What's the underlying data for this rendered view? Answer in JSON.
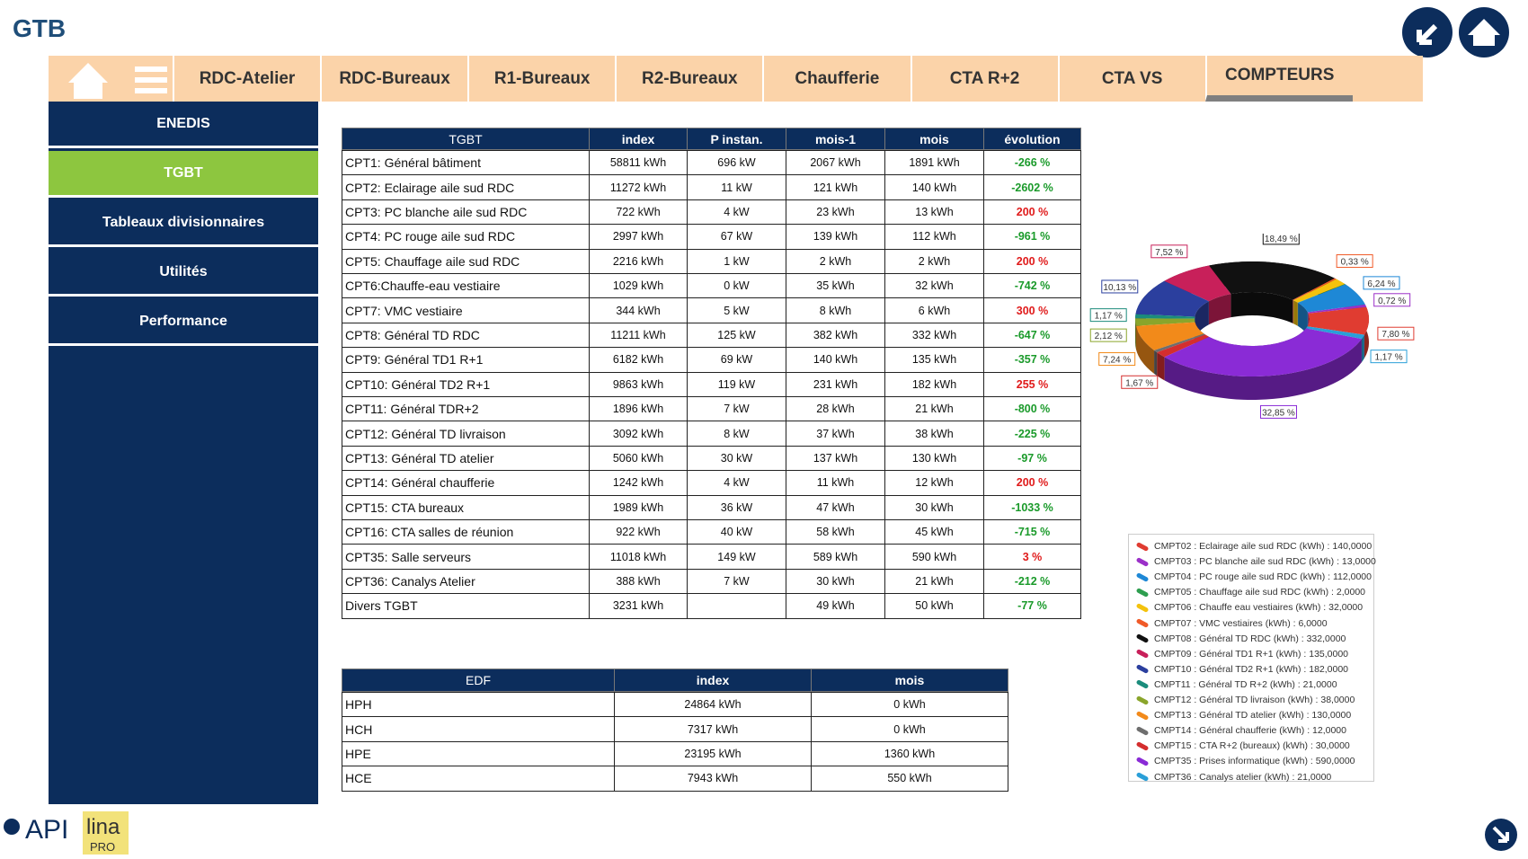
{
  "header": {
    "title": "GTB"
  },
  "nav": {
    "tabs": [
      "RDC-Atelier",
      "RDC-Bureaux",
      "R1-Bureaux",
      "R2-Bureaux",
      "Chaufferie",
      "CTA R+2",
      "CTA VS",
      "COMPTEURS"
    ],
    "active": 7
  },
  "sidebar": {
    "items": [
      "ENEDIS",
      "TGBT",
      "Tableaux divisionnaires",
      "Utilités",
      "Performance"
    ],
    "active": 1
  },
  "tgbt": {
    "columns": [
      "TGBT",
      "index",
      "P instan.",
      "mois-1",
      "mois",
      "évolution"
    ],
    "rows": [
      [
        "CPT1: Général bâtiment",
        "58811 kWh",
        "696 kW",
        "2067 kWh",
        "1891 kWh",
        "-266 %"
      ],
      [
        "CPT2: Eclairage aile sud RDC",
        "11272 kWh",
        "11 kW",
        "121 kWh",
        "140 kWh",
        "-2602 %"
      ],
      [
        "CPT3: PC blanche aile sud RDC",
        "722 kWh",
        "4 kW",
        "23 kWh",
        "13 kWh",
        "200 %"
      ],
      [
        "CPT4: PC rouge aile sud RDC",
        "2997 kWh",
        "67 kW",
        "139 kWh",
        "112 kWh",
        "-961 %"
      ],
      [
        "CPT5: Chauffage aile sud RDC",
        "2216 kWh",
        "1 kW",
        "2 kWh",
        "2 kWh",
        "200 %"
      ],
      [
        "CPT6:Chauffe-eau vestiaire",
        "1029 kWh",
        "0 kW",
        "35 kWh",
        "32 kWh",
        "-742 %"
      ],
      [
        "CPT7: VMC vestiaire",
        "344 kWh",
        "5 kW",
        "8 kWh",
        "6 kWh",
        "300 %"
      ],
      [
        "CPT8: Général TD RDC",
        "11211 kWh",
        "125 kW",
        "382 kWh",
        "332 kWh",
        "-647 %"
      ],
      [
        "CPT9: Général TD1 R+1",
        "6182 kWh",
        "69 kW",
        "140 kWh",
        "135 kWh",
        "-357 %"
      ],
      [
        "CPT10: Général TD2 R+1",
        "9863 kWh",
        "119 kW",
        "231 kWh",
        "182 kWh",
        "255 %"
      ],
      [
        "CPT11: Général TDR+2",
        "1896 kWh",
        "7 kW",
        "28 kWh",
        "21 kWh",
        "-800 %"
      ],
      [
        "CPT12: Général TD livraison",
        "3092 kWh",
        "8 kW",
        "37 kWh",
        "38 kWh",
        "-225 %"
      ],
      [
        "CPT13: Général TD atelier",
        "5060 kWh",
        "30 kW",
        "137 kWh",
        "130 kWh",
        "-97 %"
      ],
      [
        "CPT14: Général chaufferie",
        "1242 kWh",
        "4 kW",
        "11 kWh",
        "12 kWh",
        "200 %"
      ],
      [
        "CPT15: CTA bureaux",
        "1989 kWh",
        "36 kW",
        "47 kWh",
        "30 kWh",
        "-1033 %"
      ],
      [
        "CPT16: CTA salles de réunion",
        "922 kWh",
        "40 kW",
        "58 kWh",
        "45 kWh",
        "-715 %"
      ],
      [
        "CPT35: Salle serveurs",
        "11018 kWh",
        "149 kW",
        "589 kWh",
        "590 kWh",
        "3 %"
      ],
      [
        "CPT36: Canalys Atelier",
        "388 kWh",
        "7 kW",
        "30 kWh",
        "21 kWh",
        "-212 %"
      ],
      [
        "Divers TGBT",
        "3231 kWh",
        null,
        "49 kWh",
        "50 kWh",
        "-77 %"
      ]
    ]
  },
  "edf": {
    "columns": [
      "EDF",
      "index",
      "mois"
    ],
    "rows": [
      [
        "HPH",
        "24864 kWh",
        "0 kWh"
      ],
      [
        "HCH",
        "7317 kWh",
        "0 kWh"
      ],
      [
        "HPE",
        "23195 kWh",
        "1360 kWh"
      ],
      [
        "HCE",
        "7943 kWh",
        "550 kWh"
      ]
    ]
  },
  "chart_data": {
    "type": "pie",
    "donut": true,
    "categories": [
      "CMPT02 : Eclairage aile sud RDC (kWh) : 140,0000",
      "CMPT03 : PC blanche aile sud RDC (kWh) : 13,0000",
      "CMPT04 : PC rouge aile sud RDC (kWh) : 112,0000",
      "CMPT05 : Chauffage aile sud RDC (kWh) : 2,0000",
      "CMPT06 : Chauffe eau vestiaires (kWh) : 32,0000",
      "CMPT07 : VMC vestiaires (kWh) : 6,0000",
      "CMPT08 : Général TD RDC (kWh) : 332,0000",
      "CMPT09 : Général TD1 R+1 (kWh) : 135,0000",
      "CMPT10 : Général TD2 R+1 (kWh) : 182,0000",
      "CMPT11 : Général TD R+2 (kWh) : 21,0000",
      "CMPT12 : Général TD livraison (kWh) : 38,0000",
      "CMPT13 : Général TD atelier (kWh) : 130,0000",
      "CMPT14 : Général chaufferie (kWh) : 12,0000",
      "CMPT15 : CTA R+2 (bureaux) (kWh) : 30,0000",
      "CMPT35 : Prises informatique (kWh) : 590,0000",
      "CMPT36 : Canalys atelier (kWh) : 21,0000"
    ],
    "values": [
      7.8,
      0.72,
      6.24,
      0.11,
      1.78,
      0.33,
      18.49,
      7.52,
      10.13,
      1.17,
      2.12,
      7.24,
      0.67,
      1.67,
      32.85,
      1.17
    ],
    "value_labels": [
      "7,80 %",
      "0,72 %",
      "6,24 %",
      null,
      null,
      "0,33 %",
      "18,49 %",
      "7,52 %",
      "10,13 %",
      "1,17 %",
      "2,12 %",
      "7,24 %",
      null,
      "1,67 %",
      "32,85 %",
      "1,17 %"
    ],
    "colors": [
      "#e03c31",
      "#9b30c8",
      "#1e88d6",
      "#2e9e4f",
      "#f4c20d",
      "#f05a28",
      "#111111",
      "#c8205a",
      "#2b3f9e",
      "#1b8c7c",
      "#8aa52b",
      "#f28a1a",
      "#6e6e6e",
      "#d42e2e",
      "#8a2bd6",
      "#2a9fd8"
    ]
  },
  "logos": {
    "api": "API",
    "lina": "lina",
    "pro": "PRO"
  }
}
